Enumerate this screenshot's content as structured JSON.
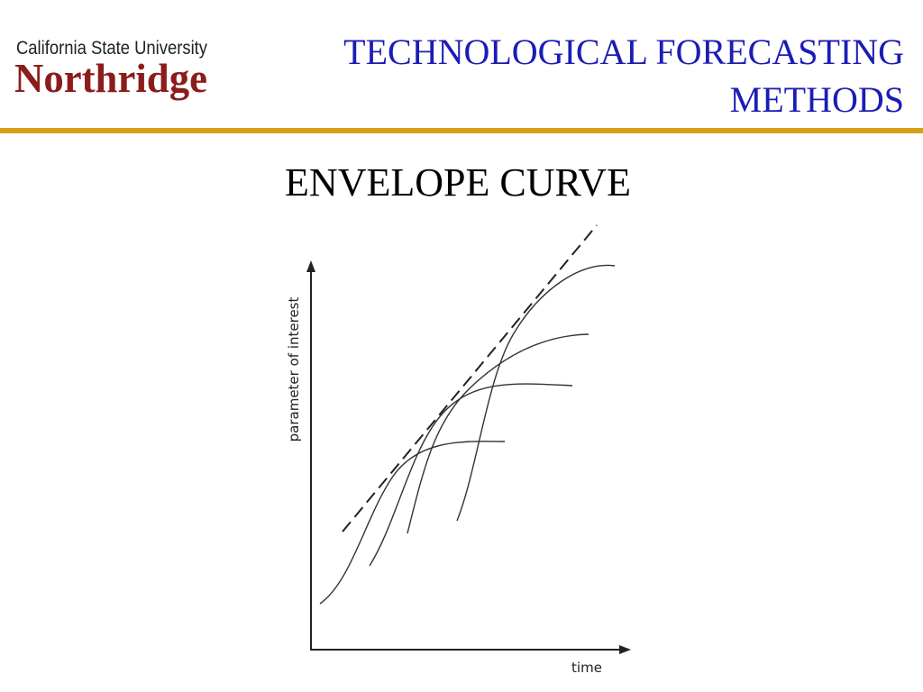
{
  "logo": {
    "line1": "California State University",
    "line2": "Northridge"
  },
  "header": {
    "title_line1": "TECHNOLOGICAL FORECASTING",
    "title_line2": "METHODS"
  },
  "slide": {
    "heading": "ENVELOPE CURVE"
  },
  "diagram": {
    "y_label": "parameter of interest",
    "x_label": "time"
  }
}
